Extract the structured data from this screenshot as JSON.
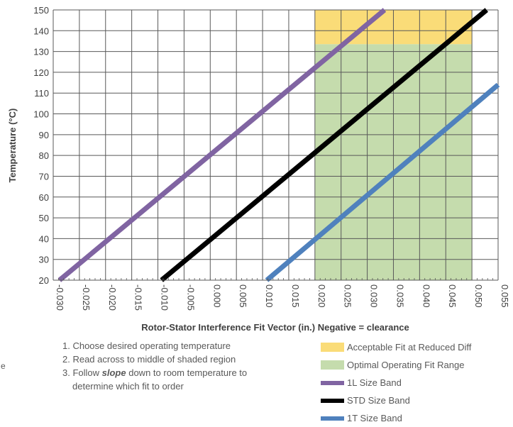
{
  "chart_data": {
    "type": "line",
    "title": "",
    "xlabel": "Rotor-Stator Interference Fit Vector (in.) Negative = clearance",
    "ylabel": "Temperature (°C)",
    "xlim": [
      -0.03,
      0.055
    ],
    "ylim": [
      20,
      150
    ],
    "x_ticks": [
      "-0.030",
      "-0.025",
      "-0.020",
      "-0.015",
      "-0.010",
      "-0.005",
      "0.000",
      "0.005",
      "0.010",
      "0.015",
      "0.020",
      "0.025",
      "0.030",
      "0.035",
      "0.040",
      "0.045",
      "0.050",
      "0.055"
    ],
    "y_ticks": [
      "20",
      "30",
      "40",
      "50",
      "60",
      "70",
      "80",
      "90",
      "100",
      "110",
      "120",
      "130",
      "140",
      "150"
    ],
    "grid": true,
    "regions": [
      {
        "name": "Acceptable Fit at Reduced Diff",
        "x": [
          0.02,
          0.05
        ],
        "y": [
          133.5,
          150
        ],
        "color": "#fadc78"
      },
      {
        "name": "Optimal Operating Fit Range",
        "x": [
          0.02,
          0.05
        ],
        "y": [
          20,
          133.5
        ],
        "color": "#c5dcad"
      }
    ],
    "series": [
      {
        "name": "1L Size Band",
        "color": "#8064a2",
        "x": [
          -0.0288,
          0.0333
        ],
        "y": [
          20,
          150
        ]
      },
      {
        "name": "STD Size Band",
        "color": "#000000",
        "x": [
          -0.0093,
          0.0528
        ],
        "y": [
          20,
          150
        ]
      },
      {
        "name": "1T Size Band",
        "color": "#4f81bd",
        "x": [
          0.0108,
          0.055
        ],
        "y": [
          20,
          114
        ]
      }
    ]
  },
  "instructions": {
    "step1": "1. Choose desired operating temperature",
    "step2": "2. Read across to middle of shaded region",
    "step3a_pre": "3. Follow ",
    "step3a_em": "slope",
    "step3a_post": " down to room temperature to",
    "step3b": "determine which fit to order"
  },
  "stray_text": "e"
}
